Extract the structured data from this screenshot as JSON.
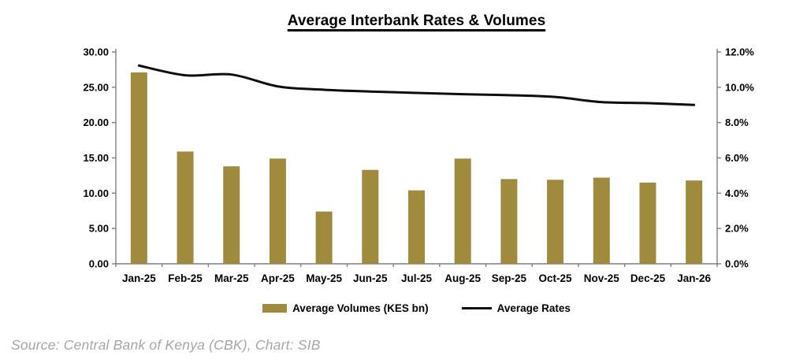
{
  "page": {
    "source_text": "Source: Central Bank of Kenya (CBK), Chart: SIB"
  },
  "colors": {
    "bar": "#A08A3E",
    "line": "#0D0D0D",
    "axis": "#7F7F7F",
    "tick_text": "#000000",
    "source_text": "#A6A6A6"
  },
  "chart_data": {
    "type": "bar",
    "subtype": "combo-bar-line",
    "title": "Average Interbank Rates & Volumes",
    "categories": [
      "Jan-25",
      "Feb-25",
      "Mar-25",
      "Apr-25",
      "May-25",
      "Jun-25",
      "Jul-25",
      "Aug-25",
      "Sep-25",
      "Oct-25",
      "Nov-25",
      "Dec-25",
      "Jan-26"
    ],
    "series": [
      {
        "name": "Average Volumes (KES bn)",
        "type": "bar",
        "axis": "left",
        "color": "#A08A3E",
        "values": [
          27.1,
          15.9,
          13.8,
          14.9,
          7.4,
          13.3,
          10.4,
          14.9,
          12.0,
          11.9,
          12.2,
          11.5,
          11.8
        ]
      },
      {
        "name": "Average Rates",
        "type": "line",
        "axis": "right",
        "color": "#0D0D0D",
        "values": [
          11.23,
          10.68,
          10.72,
          10.05,
          9.86,
          9.76,
          9.68,
          9.61,
          9.55,
          9.45,
          9.16,
          9.1,
          9.0
        ]
      }
    ],
    "left_axis": {
      "min": 0,
      "max": 30,
      "tick_labels_top_to_bottom": [
        "30.00",
        "25.00",
        "20.00",
        "15.00",
        "10.00",
        "5.00",
        "0.00"
      ]
    },
    "right_axis": {
      "min": 0,
      "max": 12,
      "tick_labels_top_to_bottom": [
        "12.0%",
        "10.0%",
        "8.0%",
        "6.0%",
        "4.0%",
        "2.0%",
        "0.0%"
      ]
    },
    "grid": false,
    "legend_position": "bottom"
  }
}
